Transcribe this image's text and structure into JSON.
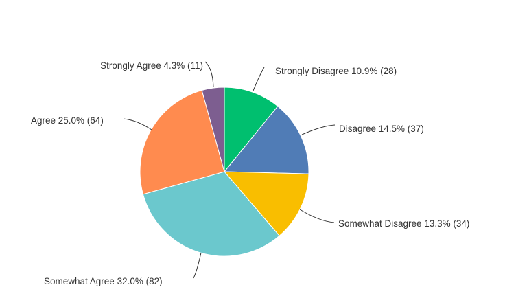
{
  "chart_data": {
    "type": "pie",
    "title": "",
    "start_angle": "top",
    "direction": "clockwise",
    "slices": [
      {
        "label": "Strongly Disagree",
        "percent": 10.9,
        "count": 28,
        "text": "Strongly Disagree 10.9% (28)",
        "color": "#00BF6F"
      },
      {
        "label": "Disagree",
        "percent": 14.5,
        "count": 37,
        "text": "Disagree 14.5% (37)",
        "color": "#507CB6"
      },
      {
        "label": "Somewhat Disagree",
        "percent": 13.3,
        "count": 34,
        "text": "Somewhat Disagree 13.3% (34)",
        "color": "#F9BE00"
      },
      {
        "label": "Somewhat Agree",
        "percent": 32.0,
        "count": 82,
        "text": "Somewhat Agree 32.0% (82)",
        "color": "#6BC8CD"
      },
      {
        "label": "Agree",
        "percent": 25.0,
        "count": 64,
        "text": "Agree 25.0% (64)",
        "color": "#FF8B4F"
      },
      {
        "label": "Strongly Agree",
        "percent": 4.3,
        "count": 11,
        "text": "Strongly Agree 4.3% (11)",
        "color": "#7D5E90"
      }
    ]
  }
}
